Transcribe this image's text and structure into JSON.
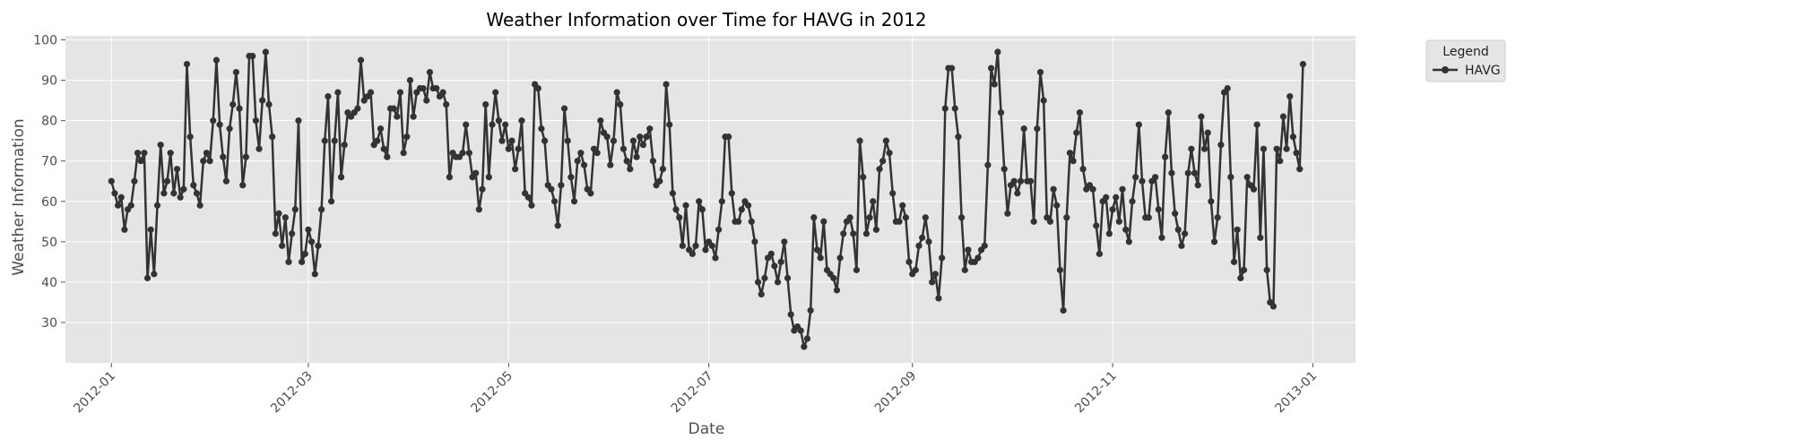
{
  "colors": {
    "plot_background": "#e5e5e5",
    "grid": "#ffffff",
    "line": "#333333",
    "legend_background": "#e5e5e5",
    "legend_border": "#d0d0d0"
  },
  "chart_data": {
    "type": "line",
    "title": "Weather Information over Time for HAVG in 2012",
    "xlabel": "Date",
    "ylabel": "Weather Information",
    "xlim": [
      "2011-12-18",
      "2013-01-14"
    ],
    "ylim": [
      20,
      101
    ],
    "grid": true,
    "legend_position": "outside-top-right",
    "legend_title": "Legend",
    "x_ticks": [
      "2012-01",
      "2012-03",
      "2012-05",
      "2012-07",
      "2012-09",
      "2012-11",
      "2013-01"
    ],
    "x_tick_dates": [
      "2012-01-01",
      "2012-03-01",
      "2012-05-01",
      "2012-07-01",
      "2012-09-01",
      "2012-11-01",
      "2013-01-01"
    ],
    "y_ticks": [
      30,
      40,
      50,
      60,
      70,
      80,
      90,
      100
    ],
    "series": [
      {
        "name": "HAVG",
        "marker": "circle",
        "start_date": "2012-01-01",
        "values": [
          65,
          62,
          59,
          61,
          53,
          58,
          59,
          65,
          72,
          70,
          72,
          41,
          53,
          42,
          59,
          74,
          62,
          65,
          72,
          62,
          68,
          61,
          63,
          94,
          76,
          64,
          62,
          59,
          70,
          72,
          70,
          80,
          95,
          79,
          71,
          65,
          78,
          84,
          92,
          83,
          64,
          71,
          96,
          96,
          80,
          73,
          85,
          97,
          84,
          76,
          52,
          57,
          49,
          56,
          45,
          52,
          58,
          80,
          45,
          47,
          53,
          50,
          42,
          49,
          58,
          75,
          86,
          60,
          75,
          87,
          66,
          74,
          82,
          81,
          82,
          83,
          95,
          85,
          86,
          87,
          74,
          75,
          78,
          73,
          71,
          83,
          83,
          81,
          87,
          72,
          76,
          90,
          81,
          87,
          88,
          88,
          85,
          92,
          88,
          88,
          86,
          87,
          84,
          66,
          72,
          71,
          71,
          72,
          79,
          72,
          66,
          67,
          58,
          63,
          84,
          66,
          79,
          87,
          80,
          75,
          79,
          73,
          75,
          68,
          73,
          80,
          62,
          61,
          59,
          89,
          88,
          78,
          75,
          64,
          63,
          60,
          54,
          64,
          83,
          75,
          66,
          60,
          70,
          72,
          69,
          63,
          62,
          73,
          72,
          80,
          77,
          76,
          69,
          75,
          87,
          84,
          73,
          70,
          68,
          75,
          71,
          76,
          74,
          76,
          78,
          70,
          64,
          65,
          68,
          89,
          79,
          62,
          58,
          56,
          49,
          59,
          48,
          47,
          49,
          60,
          58,
          48,
          50,
          49,
          46,
          53,
          60,
          76,
          76,
          62,
          55,
          55,
          58,
          60,
          59,
          55,
          50,
          40,
          37,
          41,
          46,
          47,
          44,
          40,
          45,
          50,
          41,
          32,
          28,
          29,
          28,
          24,
          26,
          33,
          56,
          48,
          46,
          55,
          43,
          42,
          41,
          38,
          46,
          52,
          55,
          56,
          52,
          43,
          75,
          66,
          52,
          56,
          60,
          53,
          68,
          70,
          75,
          72,
          62,
          55,
          55,
          59,
          56,
          45,
          42,
          43,
          49,
          51,
          56,
          50,
          40,
          42,
          36,
          46,
          83,
          93,
          93,
          83,
          76,
          56,
          43,
          48,
          45,
          45,
          46,
          48,
          49,
          69,
          93,
          89,
          97,
          82,
          68,
          57,
          64,
          65,
          62,
          65,
          78,
          65,
          65,
          55,
          78,
          92,
          85,
          56,
          55,
          63,
          59,
          43,
          33,
          56,
          72,
          70,
          77,
          82,
          68,
          63,
          64,
          63,
          54,
          47,
          60,
          61,
          52,
          58,
          61,
          55,
          63,
          53,
          50,
          60,
          66,
          79,
          65,
          56,
          56,
          65,
          66,
          58,
          51,
          71,
          82,
          67,
          57,
          53,
          49,
          52,
          67,
          73,
          67,
          64,
          81,
          73,
          77,
          60,
          50,
          56,
          74,
          87,
          88,
          66,
          45,
          53,
          41,
          43,
          66,
          64,
          63,
          79,
          51,
          73,
          43,
          35,
          34,
          73,
          70,
          81,
          73,
          86,
          76,
          72,
          68,
          94
        ]
      }
    ]
  }
}
